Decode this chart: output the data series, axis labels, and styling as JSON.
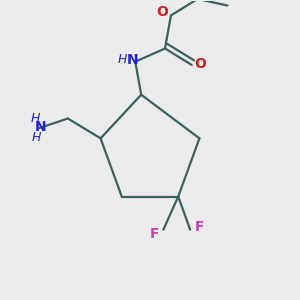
{
  "background_color": "#ebebeb",
  "bond_color": "#3a6060",
  "atom_colors": {
    "N": "#2222cc",
    "O": "#cc2020",
    "F": "#cc44aa",
    "C": "#3a6060",
    "H": "#3a6060",
    "NH_label": "#2222cc",
    "NH2_color": "#2222cc"
  },
  "figsize": [
    3.0,
    3.0
  ],
  "dpi": 100,
  "bond_lw": 1.6,
  "font_size": 10
}
